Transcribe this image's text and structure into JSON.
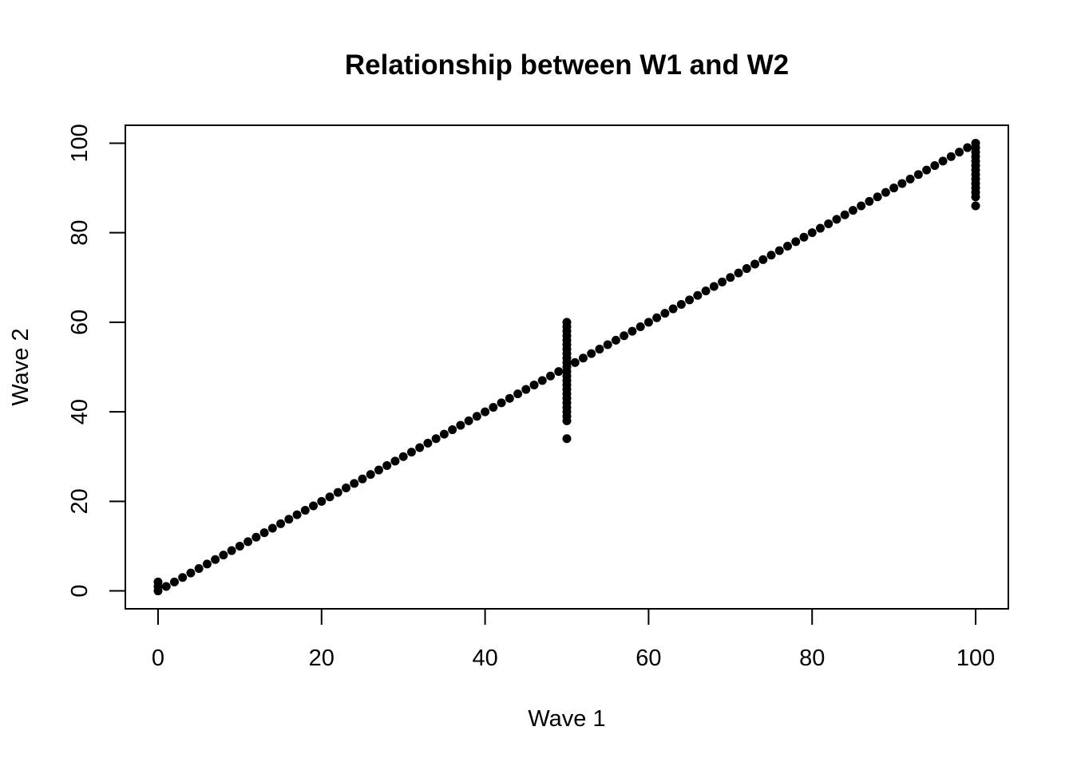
{
  "chart_data": {
    "type": "scatter",
    "title": "Relationship between W1 and  W2",
    "xlabel": "Wave 1",
    "ylabel": "Wave 2",
    "xlim": [
      -4,
      104
    ],
    "ylim": [
      -4,
      104
    ],
    "xticks": [
      0,
      20,
      40,
      60,
      80,
      100
    ],
    "yticks": [
      0,
      20,
      40,
      60,
      80,
      100
    ],
    "xtick_labels": [
      "0",
      "20",
      "40",
      "60",
      "80",
      "100"
    ],
    "ytick_labels": [
      "0",
      "20",
      "40",
      "60",
      "80",
      "100"
    ],
    "grid": false,
    "marker_color": "#000000",
    "series": [
      {
        "points": [
          [
            0,
            0
          ],
          [
            0,
            1
          ],
          [
            0,
            2
          ],
          [
            1,
            1
          ],
          [
            2,
            2
          ],
          [
            3,
            3
          ],
          [
            4,
            4
          ],
          [
            5,
            5
          ],
          [
            6,
            6
          ],
          [
            7,
            7
          ],
          [
            8,
            8
          ],
          [
            9,
            9
          ],
          [
            10,
            10
          ],
          [
            11,
            11
          ],
          [
            12,
            12
          ],
          [
            13,
            13
          ],
          [
            14,
            14
          ],
          [
            15,
            15
          ],
          [
            16,
            16
          ],
          [
            17,
            17
          ],
          [
            18,
            18
          ],
          [
            19,
            19
          ],
          [
            20,
            20
          ],
          [
            21,
            21
          ],
          [
            22,
            22
          ],
          [
            23,
            23
          ],
          [
            24,
            24
          ],
          [
            25,
            25
          ],
          [
            26,
            26
          ],
          [
            27,
            27
          ],
          [
            28,
            28
          ],
          [
            29,
            29
          ],
          [
            30,
            30
          ],
          [
            31,
            31
          ],
          [
            32,
            32
          ],
          [
            33,
            33
          ],
          [
            34,
            34
          ],
          [
            35,
            35
          ],
          [
            36,
            36
          ],
          [
            37,
            37
          ],
          [
            38,
            38
          ],
          [
            39,
            39
          ],
          [
            40,
            40
          ],
          [
            41,
            41
          ],
          [
            42,
            42
          ],
          [
            43,
            43
          ],
          [
            44,
            44
          ],
          [
            45,
            45
          ],
          [
            46,
            46
          ],
          [
            47,
            47
          ],
          [
            48,
            48
          ],
          [
            49,
            49
          ],
          [
            50,
            34
          ],
          [
            50,
            38
          ],
          [
            50,
            39
          ],
          [
            50,
            40
          ],
          [
            50,
            41
          ],
          [
            50,
            42
          ],
          [
            50,
            43
          ],
          [
            50,
            44
          ],
          [
            50,
            45
          ],
          [
            50,
            46
          ],
          [
            50,
            47
          ],
          [
            50,
            48
          ],
          [
            50,
            49
          ],
          [
            50,
            50
          ],
          [
            50,
            51
          ],
          [
            50,
            52
          ],
          [
            50,
            53
          ],
          [
            50,
            54
          ],
          [
            50,
            55
          ],
          [
            50,
            56
          ],
          [
            50,
            57
          ],
          [
            50,
            58
          ],
          [
            50,
            59
          ],
          [
            50,
            60
          ],
          [
            51,
            51
          ],
          [
            52,
            52
          ],
          [
            53,
            53
          ],
          [
            54,
            54
          ],
          [
            55,
            55
          ],
          [
            56,
            56
          ],
          [
            57,
            57
          ],
          [
            58,
            58
          ],
          [
            59,
            59
          ],
          [
            60,
            60
          ],
          [
            61,
            61
          ],
          [
            62,
            62
          ],
          [
            63,
            63
          ],
          [
            64,
            64
          ],
          [
            65,
            65
          ],
          [
            66,
            66
          ],
          [
            67,
            67
          ],
          [
            68,
            68
          ],
          [
            69,
            69
          ],
          [
            70,
            70
          ],
          [
            71,
            71
          ],
          [
            72,
            72
          ],
          [
            73,
            73
          ],
          [
            74,
            74
          ],
          [
            75,
            75
          ],
          [
            76,
            76
          ],
          [
            77,
            77
          ],
          [
            78,
            78
          ],
          [
            79,
            79
          ],
          [
            80,
            80
          ],
          [
            81,
            81
          ],
          [
            82,
            82
          ],
          [
            83,
            83
          ],
          [
            84,
            84
          ],
          [
            85,
            85
          ],
          [
            86,
            86
          ],
          [
            87,
            87
          ],
          [
            88,
            88
          ],
          [
            89,
            89
          ],
          [
            90,
            90
          ],
          [
            91,
            91
          ],
          [
            92,
            92
          ],
          [
            93,
            93
          ],
          [
            94,
            94
          ],
          [
            95,
            95
          ],
          [
            96,
            96
          ],
          [
            97,
            97
          ],
          [
            98,
            98
          ],
          [
            99,
            99
          ],
          [
            100,
            86
          ],
          [
            100,
            88
          ],
          [
            100,
            89
          ],
          [
            100,
            90
          ],
          [
            100,
            91
          ],
          [
            100,
            92
          ],
          [
            100,
            93
          ],
          [
            100,
            94
          ],
          [
            100,
            95
          ],
          [
            100,
            96
          ],
          [
            100,
            97
          ],
          [
            100,
            98
          ],
          [
            100,
            99
          ],
          [
            100,
            100
          ]
        ]
      }
    ]
  }
}
